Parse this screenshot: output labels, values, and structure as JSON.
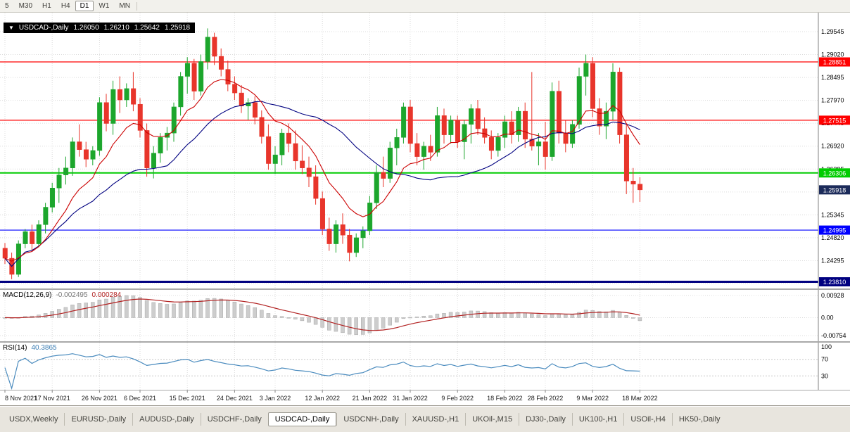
{
  "colors": {
    "candle_up": "#1CA62C",
    "candle_down": "#E8352B",
    "ma_fast": "#CC0000",
    "ma_slow": "#000080",
    "grid": "#DCDCDC",
    "axis_line": "#808080",
    "macd_bar": "#CDCDCD",
    "macd_bar_stroke": "#A8A8A8",
    "macd_signal": "#B22222",
    "rsi_line": "#4A8BBE",
    "level_red": "#FF0000",
    "level_green": "#00CC00",
    "level_blue": "#0000FF",
    "level_navy": "#000080",
    "current_tag_bg": "#1C2B5A"
  },
  "toolbar": {
    "timeframes": [
      "5",
      "M30",
      "H1",
      "H4",
      "D1",
      "W1",
      "MN"
    ],
    "active": "D1"
  },
  "chart": {
    "title": {
      "arrow": "▼",
      "symbol": "USDCAD-,Daily",
      "open": "1.26050",
      "high": "1.26210",
      "low": "1.25642",
      "close": "1.25918"
    },
    "macd": {
      "name": "MACD(12,26,9)",
      "value_main": "-0.002495",
      "value_signal": "0.000284"
    },
    "rsi": {
      "name": "RSI(14)",
      "value": "40.3865"
    }
  },
  "chart_data": [
    {
      "type": "candlestick",
      "symbol": "USDCAD-",
      "timeframe": "Daily",
      "ylim": [
        1.236,
        1.299
      ],
      "y_grid": [
        "1.29545",
        "1.29020",
        "1.28495",
        "1.27970",
        "1.27445",
        "1.26920",
        "1.26395",
        "1.25870",
        "1.25345",
        "1.24820",
        "1.24295",
        "1.23770"
      ],
      "x_tick_labels": [
        "8 Nov 2021",
        "17 Nov 2021",
        "26 Nov 2021",
        "6 Dec 2021",
        "15 Dec 2021",
        "24 Dec 2021",
        "3 Jan 2022",
        "12 Jan 2022",
        "21 Jan 2022",
        "31 Jan 2022",
        "9 Feb 2022",
        "18 Feb 2022",
        "28 Feb 2022",
        "9 Mar 2022",
        "18 Mar 2022"
      ],
      "x_tick_indices": [
        0,
        7,
        14,
        20,
        27,
        34,
        40,
        47,
        54,
        60,
        67,
        74,
        80,
        87,
        94
      ],
      "levels": [
        {
          "value": 1.28851,
          "label": "1.28851",
          "color": "#FF0000",
          "width": 1.2
        },
        {
          "value": 1.27515,
          "label": "1.27515",
          "color": "#FF0000",
          "width": 1.2
        },
        {
          "value": 1.26306,
          "label": "1.26306",
          "color": "#00CC00",
          "width": 2
        },
        {
          "value": 1.24995,
          "label": "1.24995",
          "color": "#0000FF",
          "width": 1.2
        },
        {
          "value": 1.2381,
          "label": "1.23810",
          "color": "#000080",
          "width": 3
        }
      ],
      "current_price": {
        "value": 1.25918,
        "label": "1.25918",
        "tag_bg": "#1C2B5A"
      },
      "ohlc": [
        [
          1.2458,
          1.247,
          1.2422,
          1.2435
        ],
        [
          1.2435,
          1.2448,
          1.2387,
          1.2398
        ],
        [
          1.2398,
          1.2476,
          1.2392,
          1.2468
        ],
        [
          1.2468,
          1.2502,
          1.2458,
          1.2496
        ],
        [
          1.2496,
          1.2512,
          1.2452,
          1.2468
        ],
        [
          1.2468,
          1.2522,
          1.246,
          1.2512
        ],
        [
          1.2512,
          1.2562,
          1.2492,
          1.2552
        ],
        [
          1.2552,
          1.2608,
          1.254,
          1.2596
        ],
        [
          1.2596,
          1.2642,
          1.2562,
          1.2626
        ],
        [
          1.2626,
          1.2668,
          1.2604,
          1.2642
        ],
        [
          1.2642,
          1.2712,
          1.2624,
          1.2702
        ],
        [
          1.2702,
          1.2742,
          1.2668,
          1.2684
        ],
        [
          1.2684,
          1.2702,
          1.2644,
          1.2662
        ],
        [
          1.2662,
          1.2692,
          1.2648,
          1.2682
        ],
        [
          1.2682,
          1.2804,
          1.267,
          1.2792
        ],
        [
          1.2792,
          1.2812,
          1.2726,
          1.2744
        ],
        [
          1.2744,
          1.2842,
          1.2718,
          1.2822
        ],
        [
          1.2822,
          1.2852,
          1.2768,
          1.2798
        ],
        [
          1.2798,
          1.2836,
          1.2782,
          1.2824
        ],
        [
          1.2824,
          1.2862,
          1.2772,
          1.2788
        ],
        [
          1.2788,
          1.2802,
          1.2712,
          1.2728
        ],
        [
          1.2728,
          1.2744,
          1.2622,
          1.2642
        ],
        [
          1.2642,
          1.2692,
          1.2618,
          1.2676
        ],
        [
          1.2676,
          1.2722,
          1.2654,
          1.2712
        ],
        [
          1.2712,
          1.2736,
          1.2682,
          1.2722
        ],
        [
          1.2722,
          1.2792,
          1.2702,
          1.2782
        ],
        [
          1.2782,
          1.2862,
          1.2762,
          1.2852
        ],
        [
          1.2852,
          1.2896,
          1.2812,
          1.2882
        ],
        [
          1.2882,
          1.2892,
          1.2798,
          1.2818
        ],
        [
          1.2818,
          1.2902,
          1.2808,
          1.2886
        ],
        [
          1.2886,
          1.2962,
          1.2868,
          1.2942
        ],
        [
          1.2942,
          1.2952,
          1.2878,
          1.2898
        ],
        [
          1.2898,
          1.2916,
          1.2852,
          1.2868
        ],
        [
          1.2868,
          1.2888,
          1.2818,
          1.2834
        ],
        [
          1.2834,
          1.2852,
          1.2798,
          1.2814
        ],
        [
          1.2814,
          1.2832,
          1.2768,
          1.2784
        ],
        [
          1.2784,
          1.2802,
          1.2752,
          1.2792
        ],
        [
          1.2792,
          1.2806,
          1.2742,
          1.2758
        ],
        [
          1.2758,
          1.2774,
          1.2698,
          1.2714
        ],
        [
          1.2714,
          1.2742,
          1.2638,
          1.2652
        ],
        [
          1.2652,
          1.2692,
          1.2628,
          1.2672
        ],
        [
          1.2672,
          1.2732,
          1.2648,
          1.2722
        ],
        [
          1.2722,
          1.2744,
          1.2678,
          1.2698
        ],
        [
          1.2698,
          1.2728,
          1.2638,
          1.2658
        ],
        [
          1.2658,
          1.2694,
          1.2628,
          1.2642
        ],
        [
          1.2642,
          1.2668,
          1.2598,
          1.2622
        ],
        [
          1.2622,
          1.2648,
          1.2558,
          1.2572
        ],
        [
          1.2572,
          1.2588,
          1.2488,
          1.2502
        ],
        [
          1.2502,
          1.2528,
          1.2452,
          1.2468
        ],
        [
          1.2468,
          1.2522,
          1.2448,
          1.2512
        ],
        [
          1.2512,
          1.2538,
          1.2468,
          1.2488
        ],
        [
          1.2488,
          1.2502,
          1.2428,
          1.2448
        ],
        [
          1.2448,
          1.2492,
          1.2438,
          1.2482
        ],
        [
          1.2482,
          1.2508,
          1.2458,
          1.2498
        ],
        [
          1.2498,
          1.2578,
          1.2488,
          1.2562
        ],
        [
          1.2562,
          1.2648,
          1.2548,
          1.2632
        ],
        [
          1.2632,
          1.2668,
          1.2598,
          1.2618
        ],
        [
          1.2618,
          1.2702,
          1.2608,
          1.2688
        ],
        [
          1.2688,
          1.2732,
          1.2648,
          1.2712
        ],
        [
          1.2712,
          1.2792,
          1.2698,
          1.2782
        ],
        [
          1.2782,
          1.2798,
          1.2678,
          1.2698
        ],
        [
          1.2698,
          1.2722,
          1.2648,
          1.2668
        ],
        [
          1.2668,
          1.2702,
          1.2638,
          1.2692
        ],
        [
          1.2692,
          1.2718,
          1.2658,
          1.2678
        ],
        [
          1.2678,
          1.2782,
          1.2668,
          1.2762
        ],
        [
          1.2762,
          1.2778,
          1.2698,
          1.2718
        ],
        [
          1.2718,
          1.2762,
          1.2698,
          1.2752
        ],
        [
          1.2752,
          1.2762,
          1.2688,
          1.2702
        ],
        [
          1.2702,
          1.2752,
          1.2662,
          1.2742
        ],
        [
          1.2742,
          1.2788,
          1.2698,
          1.2778
        ],
        [
          1.2778,
          1.2798,
          1.2718,
          1.2732
        ],
        [
          1.2732,
          1.2758,
          1.2698,
          1.2712
        ],
        [
          1.2712,
          1.2728,
          1.2662,
          1.2682
        ],
        [
          1.2682,
          1.2722,
          1.2668,
          1.2712
        ],
        [
          1.2712,
          1.2762,
          1.2688,
          1.2748
        ],
        [
          1.2748,
          1.2772,
          1.2698,
          1.2718
        ],
        [
          1.2718,
          1.2782,
          1.2702,
          1.2772
        ],
        [
          1.2772,
          1.2792,
          1.2688,
          1.2708
        ],
        [
          1.2708,
          1.2862,
          1.2682,
          1.2692
        ],
        [
          1.2692,
          1.2722,
          1.2648,
          1.2702
        ],
        [
          1.2702,
          1.2748,
          1.2638,
          1.2668
        ],
        [
          1.2668,
          1.2838,
          1.2658,
          1.2818
        ],
        [
          1.2818,
          1.2842,
          1.2698,
          1.2722
        ],
        [
          1.2722,
          1.2752,
          1.2678,
          1.2698
        ],
        [
          1.2698,
          1.2752,
          1.2688,
          1.2742
        ],
        [
          1.2742,
          1.2872,
          1.2732,
          1.2852
        ],
        [
          1.2852,
          1.2902,
          1.2808,
          1.2882
        ],
        [
          1.2882,
          1.2896,
          1.2758,
          1.2778
        ],
        [
          1.2778,
          1.2802,
          1.2718,
          1.2738
        ],
        [
          1.2738,
          1.2792,
          1.2708,
          1.2772
        ],
        [
          1.2772,
          1.2882,
          1.2752,
          1.2862
        ],
        [
          1.2862,
          1.2872,
          1.2698,
          1.2718
        ],
        [
          1.2718,
          1.2742,
          1.2582,
          1.2612
        ],
        [
          1.2612,
          1.2642,
          1.2562,
          1.2605
        ],
        [
          1.2605,
          1.2621,
          1.25642,
          1.25918
        ]
      ]
    },
    {
      "type": "bar",
      "name": "MACD(12,26,9)",
      "params": [
        12,
        26,
        9
      ],
      "current_values": [
        -0.002495,
        0.000284
      ],
      "y_axis_labels": [
        "0.00928",
        "0.00",
        "-0.00754"
      ],
      "anchors": {
        "top_value": 0.00928,
        "bottom_value": -0.00754
      },
      "derivation": "histogram = EMA12 - EMA26 of closes; red line = EMA9 signal"
    },
    {
      "type": "line",
      "name": "RSI(14)",
      "period": 14,
      "current_value": 40.3865,
      "levels": [
        70,
        30
      ],
      "y_axis_labels": [
        "100",
        "70",
        "30"
      ],
      "ylim": [
        0,
        100
      ],
      "derivation": "RSI(14) of closes"
    }
  ],
  "tabs": {
    "items": [
      "USDX,Weekly",
      "EURUSD-,Daily",
      "AUDUSD-,Daily",
      "USDCHF-,Daily",
      "USDCAD-,Daily",
      "USDCNH-,Daily",
      "XAUUSD-,H1",
      "UKOil-,M15",
      "DJ30-,Daily",
      "UK100-,H1",
      "USOil-,H4",
      "HK50-,Daily"
    ],
    "active_index": 4
  }
}
